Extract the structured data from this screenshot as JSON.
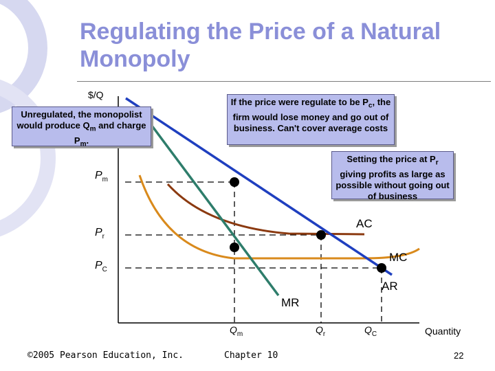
{
  "slide": {
    "title_line1": "Regulating the Price of a Natural",
    "title_line2": "Monopoly",
    "footer_copyright": "©2005 Pearson Education, Inc.",
    "footer_chapter": "Chapter 10",
    "footer_page": "22"
  },
  "axes": {
    "y_label": "$/Q",
    "x_label": "Quantity"
  },
  "price_labels": {
    "pm": {
      "main": "P",
      "sub": "m"
    },
    "pr": {
      "main": "P",
      "sub": "r"
    },
    "pc": {
      "main": "P",
      "sub": "C"
    }
  },
  "quantity_labels": {
    "qm": {
      "main": "Q",
      "sub": "m"
    },
    "qr": {
      "main": "Q",
      "sub": "r"
    },
    "qc": {
      "main": "Q",
      "sub": "C"
    }
  },
  "curve_labels": {
    "ac": "AC",
    "mc": "MC",
    "ar": "AR",
    "mr": "MR"
  },
  "callouts": {
    "unregulated": {
      "part1": "Unregulated, the monopolist would produce Q",
      "sub1": "m",
      "part2": " and charge P",
      "sub2": "m",
      "part3": "."
    },
    "pc_case": {
      "part1": "If the price were regulate to be P",
      "sub1": "c",
      "part2": ", the firm would lose money and go out of business.  Can't cover average costs"
    },
    "pr_case": {
      "part1": "Setting the price at P",
      "sub1": "r",
      "part2": " giving profits as large as possible without going out of business"
    }
  },
  "colors": {
    "title": "#8a8fd8",
    "callout_fill": "#b8bcec",
    "demand_ar": "#1f3fbf",
    "mr": "#2e7d6b",
    "ac": "#8b3a10",
    "mc": "#d98a1c"
  }
}
